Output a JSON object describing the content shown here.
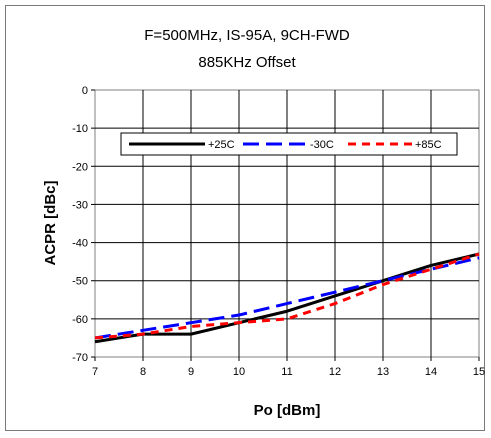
{
  "chart_data": {
    "type": "line",
    "title": "F=500MHz, IS-95A, 9CH-FWD",
    "subtitle": "885KHz Offset",
    "xlabel": "Po [dBm]",
    "ylabel": "ACPR [dBc]",
    "xlim": [
      7,
      15
    ],
    "ylim": [
      -70,
      0
    ],
    "xticks": [
      "7",
      "8",
      "9",
      "10",
      "11",
      "12",
      "13",
      "14",
      "15"
    ],
    "yticks": [
      "0",
      "-10",
      "-20",
      "-30",
      "-40",
      "-50",
      "-60",
      "-70"
    ],
    "grid": true,
    "legend_position": "upper-middle",
    "series": [
      {
        "name": "+25C",
        "color": "#000000",
        "dash": "solid",
        "x": [
          7,
          8,
          9,
          10,
          11,
          12,
          13,
          14,
          15
        ],
        "y": [
          -66,
          -64,
          -64,
          -61,
          -58,
          -54,
          -50,
          -46,
          -43
        ]
      },
      {
        "name": "-30C",
        "color": "#0000ff",
        "dash": "long-dash",
        "x": [
          7,
          8,
          9,
          10,
          11,
          12,
          13,
          14,
          15
        ],
        "y": [
          -65,
          -63,
          -61,
          -59,
          -56,
          -53,
          -50,
          -47,
          -44
        ]
      },
      {
        "name": "+85C",
        "color": "#ff0000",
        "dash": "short-dash",
        "x": [
          7,
          8,
          9,
          10,
          11,
          12,
          13,
          14,
          15
        ],
        "y": [
          -65,
          -64,
          -62,
          -61,
          -60,
          -56,
          -51,
          -47,
          -43
        ]
      }
    ]
  }
}
